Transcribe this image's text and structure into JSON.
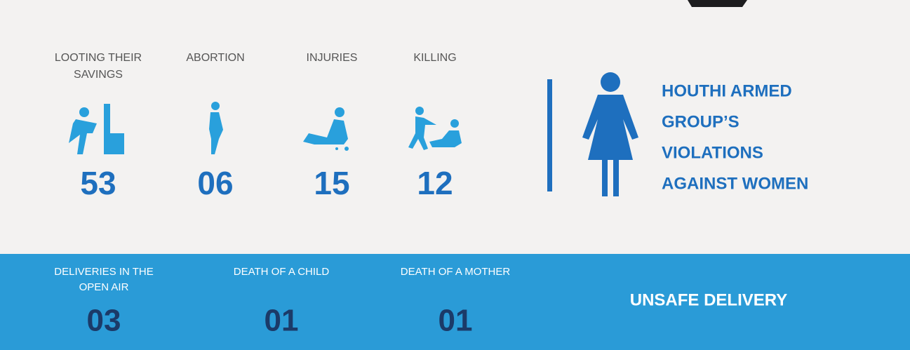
{
  "stats": [
    {
      "label": [
        "LOOTING THEIR",
        "SAVINGS"
      ],
      "value": "53"
    },
    {
      "label": [
        "ABORTION"
      ],
      "value": "06"
    },
    {
      "label": [
        "INJURIES"
      ],
      "value": "15"
    },
    {
      "label": [
        "KILLING"
      ],
      "value": "12"
    }
  ],
  "title": [
    "HOUTHI ARMED",
    "GROUP’S",
    "VIOLATIONS",
    "AGAINST WOMEN"
  ],
  "delivery": {
    "items": [
      {
        "label": [
          "DELIVERIES IN THE",
          "OPEN AIR"
        ],
        "value": "03"
      },
      {
        "label": [
          "DEATH OF A CHILD"
        ],
        "value": "01"
      },
      {
        "label": [
          "DEATH OF A MOTHER"
        ],
        "value": "01"
      }
    ],
    "title": "UNSAFE DELIVERY"
  }
}
